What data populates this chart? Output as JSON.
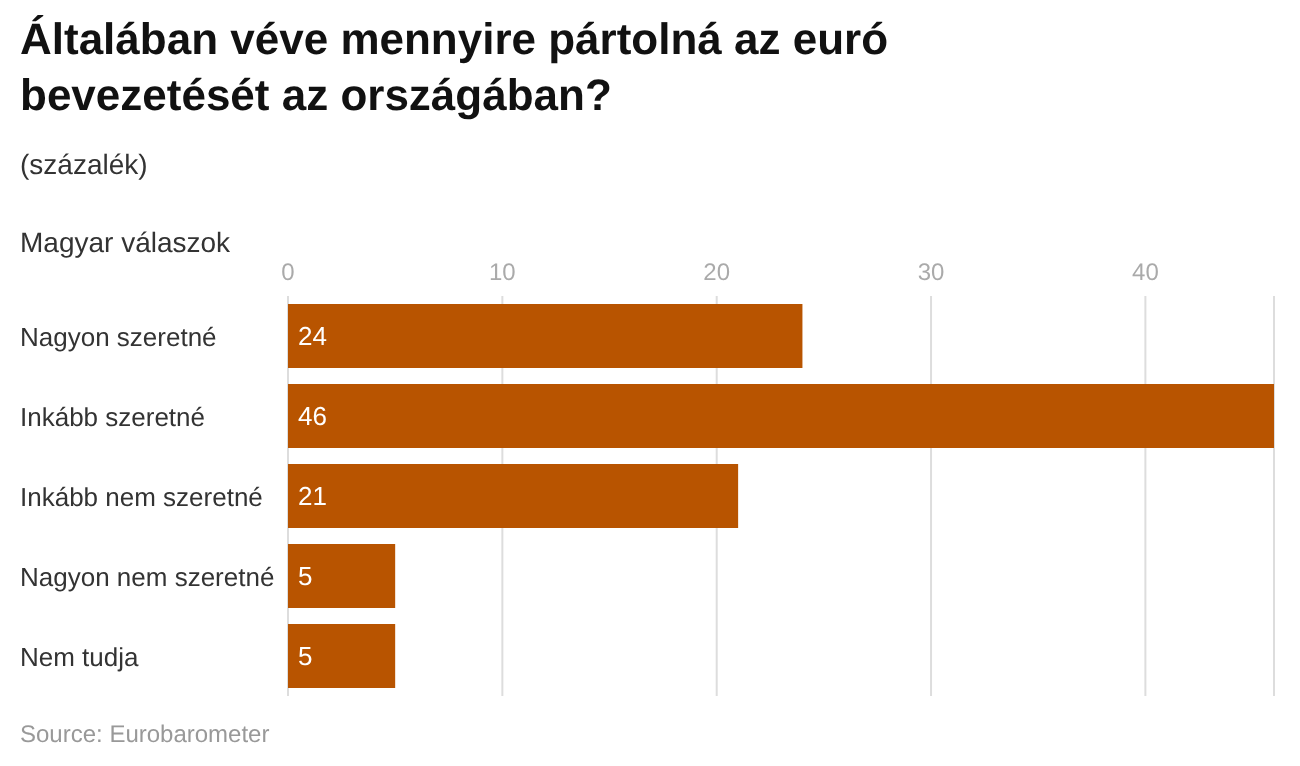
{
  "chart_data": {
    "type": "bar",
    "orientation": "horizontal",
    "title": "Általában véve mennyire pártolná az euró bevezetését az országában?",
    "subtitle": "(százalék)",
    "ylabel": "Magyar válaszok",
    "categories": [
      "Nagyon szeretné",
      "Inkább szeretné",
      "Inkább nem szeretné",
      "Nagyon nem szeretné",
      "Nem tudja"
    ],
    "values": [
      24,
      46,
      21,
      5,
      5
    ],
    "color": "#b85400",
    "xlim": [
      0,
      46
    ],
    "xticks": [
      0,
      10,
      20,
      30,
      40
    ],
    "grid": "x",
    "data_labels": true,
    "annotations": [
      "Source: Eurobarometer"
    ]
  }
}
